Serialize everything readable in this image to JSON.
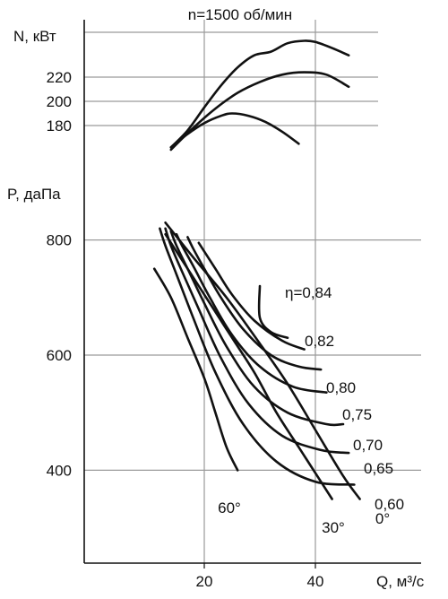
{
  "chart_data": [
    {
      "type": "line",
      "title": "n=1500 об/мин",
      "ylabel": "N, кВт",
      "yticks": [
        {
          "label": "180",
          "value": 180
        },
        {
          "label": "200",
          "value": 200
        },
        {
          "label": "220",
          "value": 220
        }
      ],
      "ylim": [
        140,
        250
      ],
      "xlim": [
        0,
        50
      ],
      "series": [
        {
          "x": [
            14,
            17,
            20,
            23,
            26,
            29,
            32,
            35,
            38,
            40,
            43,
            46
          ],
          "values": [
            162,
            176,
            195,
            213,
            228,
            238,
            241,
            248,
            250,
            249,
            244,
            238
          ]
        },
        {
          "x": [
            14,
            18,
            22,
            26,
            30,
            34,
            38,
            42,
            46
          ],
          "values": [
            160,
            178,
            194,
            207,
            216,
            222,
            224,
            222,
            212
          ]
        },
        {
          "x": [
            14,
            17,
            20,
            23,
            25,
            28,
            31,
            34,
            37
          ],
          "values": [
            162,
            173,
            182,
            188,
            190,
            188,
            183,
            175,
            165
          ]
        }
      ]
    },
    {
      "type": "line",
      "ylabel": "P, даПа",
      "xlabel": "Q, м³/с",
      "xticks": [
        {
          "label": "20",
          "value": 20
        },
        {
          "label": "40",
          "value": 40
        }
      ],
      "yticks": [
        {
          "label": "400",
          "value": 400
        },
        {
          "label": "600",
          "value": 600
        },
        {
          "label": "800",
          "value": 800
        }
      ],
      "xlim": [
        0,
        50
      ],
      "ylim": [
        250,
        920
      ],
      "blade_angle_curves": [
        {
          "label": "60°",
          "x": [
            11,
            14,
            17,
            20,
            22,
            24,
            26
          ],
          "values": [
            750,
            700,
            630,
            560,
            500,
            440,
            400
          ]
        },
        {
          "label": "30°",
          "x": [
            13,
            17,
            21,
            25,
            29,
            33,
            37,
            41,
            43
          ],
          "values": [
            810,
            750,
            690,
            630,
            570,
            500,
            440,
            380,
            350
          ]
        },
        {
          "label": "0°",
          "x": [
            13,
            18,
            24,
            30,
            35,
            40,
            45,
            48
          ],
          "values": [
            830,
            770,
            700,
            620,
            550,
            470,
            390,
            350
          ]
        }
      ],
      "efficiency_curves": [
        {
          "label": "η=0,84",
          "x": [
            30,
            30,
            32,
            35
          ],
          "values": [
            720,
            665,
            640,
            630
          ]
        },
        {
          "label": "0,82",
          "x": [
            19,
            20,
            22,
            25,
            29,
            34,
            38
          ],
          "values": [
            795,
            780,
            750,
            705,
            660,
            625,
            610
          ]
        },
        {
          "label": "0,80",
          "x": [
            17,
            18,
            20,
            23,
            27,
            32,
            37,
            41
          ],
          "values": [
            805,
            785,
            750,
            700,
            645,
            600,
            580,
            575
          ]
        },
        {
          "label": "0,75",
          "x": [
            15,
            16,
            18,
            21,
            25,
            30,
            36,
            42
          ],
          "values": [
            810,
            790,
            755,
            700,
            635,
            580,
            545,
            535
          ]
        },
        {
          "label": "0,70",
          "x": [
            14,
            15,
            17,
            20,
            24,
            29,
            35,
            42,
            45
          ],
          "values": [
            815,
            790,
            750,
            690,
            615,
            545,
            500,
            480,
            480
          ]
        },
        {
          "label": "0,65",
          "x": [
            13,
            14,
            16,
            19,
            23,
            28,
            34,
            41,
            46
          ],
          "values": [
            820,
            790,
            745,
            680,
            595,
            515,
            460,
            435,
            430
          ]
        },
        {
          "label": "0,60",
          "x": [
            12,
            13,
            15,
            18,
            22,
            27,
            33,
            40,
            47
          ],
          "values": [
            820,
            790,
            740,
            665,
            570,
            480,
            415,
            380,
            375
          ]
        }
      ]
    }
  ]
}
